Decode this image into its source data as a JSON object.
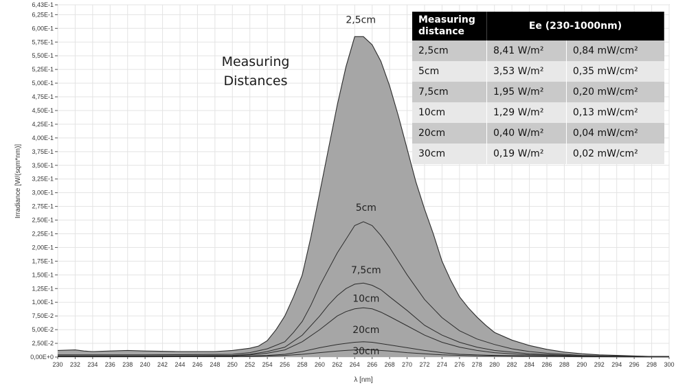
{
  "chart_data": {
    "type": "area",
    "xlabel": "λ [nm]",
    "ylabel": "Irradiance [W/(sqm*nm)]",
    "xlim": [
      230,
      300
    ],
    "ylim": [
      0,
      0.643
    ],
    "x_ticks": [
      "230",
      "232",
      "234",
      "236",
      "238",
      "240",
      "242",
      "244",
      "246",
      "248",
      "250",
      "252",
      "254",
      "256",
      "258",
      "260",
      "262",
      "264",
      "266",
      "268",
      "270",
      "272",
      "274",
      "276",
      "278",
      "280",
      "282",
      "284",
      "286",
      "288",
      "290",
      "292",
      "294",
      "296",
      "298",
      "300"
    ],
    "y_ticks": [
      {
        "value": 0,
        "label": "0,00E+0"
      },
      {
        "value": 0.025,
        "label": "2,50E-2"
      },
      {
        "value": 0.05,
        "label": "5,00E-2"
      },
      {
        "value": 0.075,
        "label": "7,50E-2"
      },
      {
        "value": 0.1,
        "label": "1,00E-1"
      },
      {
        "value": 0.125,
        "label": "1,25E-1"
      },
      {
        "value": 0.15,
        "label": "1,50E-1"
      },
      {
        "value": 0.175,
        "label": "1,75E-1"
      },
      {
        "value": 0.2,
        "label": "2,00E-1"
      },
      {
        "value": 0.225,
        "label": "2,25E-1"
      },
      {
        "value": 0.25,
        "label": "2,50E-1"
      },
      {
        "value": 0.275,
        "label": "2,75E-1"
      },
      {
        "value": 0.3,
        "label": "3,00E-1"
      },
      {
        "value": 0.325,
        "label": "3,25E-1"
      },
      {
        "value": 0.35,
        "label": "3,50E-1"
      },
      {
        "value": 0.375,
        "label": "3,75E-1"
      },
      {
        "value": 0.4,
        "label": "4,00E-1"
      },
      {
        "value": 0.425,
        "label": "4,25E-1"
      },
      {
        "value": 0.45,
        "label": "4,50E-1"
      },
      {
        "value": 0.475,
        "label": "4,75E-1"
      },
      {
        "value": 0.5,
        "label": "5,00E-1"
      },
      {
        "value": 0.525,
        "label": "5,25E-1"
      },
      {
        "value": 0.55,
        "label": "5,50E-1"
      },
      {
        "value": 0.575,
        "label": "5,75E-1"
      },
      {
        "value": 0.6,
        "label": "6,00E-1"
      },
      {
        "value": 0.625,
        "label": "6,25E-1"
      },
      {
        "value": 0.643,
        "label": "6,43E-1"
      }
    ],
    "grid": true,
    "colors": {
      "fill": "#a6a6a6",
      "line": "#2b2b2b",
      "grid": "#e3e3e3"
    },
    "series": [
      {
        "name": "2,5cm",
        "label_x": 264.7,
        "label_y": 0.605,
        "x": [
          230,
          232,
          233,
          234,
          236,
          238,
          240,
          244,
          248,
          250,
          252,
          253,
          254,
          255,
          256,
          257,
          258,
          259,
          260,
          261,
          262,
          263,
          264,
          265,
          266,
          267,
          268,
          269,
          270,
          271,
          272,
          273,
          274,
          275,
          276,
          277,
          278,
          279,
          280,
          282,
          284,
          286,
          288,
          290,
          292,
          294,
          296,
          298,
          300
        ],
        "y": [
          0.012,
          0.013,
          0.011,
          0.01,
          0.011,
          0.012,
          0.011,
          0.01,
          0.01,
          0.012,
          0.016,
          0.02,
          0.03,
          0.05,
          0.075,
          0.11,
          0.15,
          0.22,
          0.3,
          0.38,
          0.46,
          0.53,
          0.585,
          0.585,
          0.57,
          0.54,
          0.495,
          0.44,
          0.38,
          0.32,
          0.27,
          0.225,
          0.175,
          0.14,
          0.11,
          0.09,
          0.073,
          0.058,
          0.045,
          0.031,
          0.021,
          0.014,
          0.009,
          0.006,
          0.004,
          0.003,
          0.002,
          0.001,
          0.001
        ]
      },
      {
        "name": "5cm",
        "label_x": 265.3,
        "label_y": 0.262,
        "x": [
          230,
          240,
          250,
          252,
          254,
          256,
          257,
          258,
          259,
          260,
          261,
          262,
          263,
          264,
          265,
          266,
          267,
          268,
          269,
          270,
          272,
          274,
          276,
          278,
          280,
          282,
          284,
          286,
          290,
          295,
          300
        ],
        "y": [
          0.004,
          0.004,
          0.005,
          0.008,
          0.015,
          0.028,
          0.045,
          0.065,
          0.095,
          0.13,
          0.16,
          0.19,
          0.215,
          0.24,
          0.247,
          0.24,
          0.222,
          0.2,
          0.175,
          0.15,
          0.105,
          0.072,
          0.048,
          0.033,
          0.023,
          0.015,
          0.01,
          0.007,
          0.003,
          0.001,
          0.001
        ]
      },
      {
        "name": "7,5cm",
        "label_x": 265.3,
        "label_y": 0.148,
        "x": [
          230,
          240,
          250,
          252,
          254,
          256,
          258,
          260,
          261,
          262,
          263,
          264,
          265,
          266,
          267,
          268,
          270,
          272,
          274,
          276,
          278,
          280,
          284,
          290,
          300
        ],
        "y": [
          0.002,
          0.002,
          0.003,
          0.005,
          0.01,
          0.018,
          0.04,
          0.075,
          0.095,
          0.112,
          0.125,
          0.133,
          0.135,
          0.131,
          0.123,
          0.11,
          0.085,
          0.058,
          0.04,
          0.027,
          0.018,
          0.012,
          0.006,
          0.002,
          0.001
        ]
      },
      {
        "name": "10cm",
        "label_x": 265.3,
        "label_y": 0.096,
        "x": [
          230,
          240,
          250,
          252,
          254,
          256,
          258,
          260,
          262,
          263,
          264,
          265,
          266,
          267,
          268,
          270,
          272,
          274,
          276,
          278,
          280,
          284,
          290,
          300
        ],
        "y": [
          0.002,
          0.002,
          0.002,
          0.004,
          0.007,
          0.013,
          0.028,
          0.05,
          0.075,
          0.083,
          0.088,
          0.09,
          0.088,
          0.082,
          0.074,
          0.057,
          0.04,
          0.027,
          0.018,
          0.012,
          0.008,
          0.004,
          0.002,
          0.001
        ]
      },
      {
        "name": "20cm",
        "label_x": 265.3,
        "label_y": 0.039,
        "x": [
          230,
          240,
          250,
          252,
          254,
          256,
          258,
          260,
          262,
          264,
          265,
          266,
          268,
          270,
          272,
          274,
          276,
          280,
          290,
          300
        ],
        "y": [
          0.001,
          0.001,
          0.001,
          0.002,
          0.003,
          0.005,
          0.01,
          0.017,
          0.023,
          0.027,
          0.028,
          0.027,
          0.022,
          0.017,
          0.012,
          0.008,
          0.005,
          0.003,
          0.001,
          0.0
        ]
      },
      {
        "name": "30cm",
        "label_x": 265.3,
        "label_y": 0.0,
        "x": [
          230,
          240,
          250,
          254,
          256,
          258,
          260,
          262,
          264,
          265,
          266,
          268,
          270,
          272,
          274,
          278,
          290,
          300
        ],
        "y": [
          0.0005,
          0.0005,
          0.0008,
          0.0015,
          0.003,
          0.005,
          0.008,
          0.011,
          0.013,
          0.0135,
          0.013,
          0.011,
          0.008,
          0.006,
          0.004,
          0.002,
          0.0005,
          0.0
        ]
      }
    ],
    "annotation": [
      "Measuring",
      "Distances"
    ]
  },
  "table": {
    "header_col1": "Measuring distance",
    "header_col2": "Ee  (230-1000nm)",
    "rows": [
      {
        "distance": "2,5cm",
        "wm2": "8,41 W/m²",
        "mwcm2": "0,84 mW/cm²"
      },
      {
        "distance": "5cm",
        "wm2": "3,53 W/m²",
        "mwcm2": "0,35 mW/cm²"
      },
      {
        "distance": "7,5cm",
        "wm2": "1,95 W/m²",
        "mwcm2": "0,20 mW/cm²"
      },
      {
        "distance": "10cm",
        "wm2": "1,29 W/m²",
        "mwcm2": "0,13 mW/cm²"
      },
      {
        "distance": "20cm",
        "wm2": "0,40 W/m²",
        "mwcm2": "0,04 mW/cm²"
      },
      {
        "distance": "30cm",
        "wm2": "0,19 W/m²",
        "mwcm2": "0,02 mW/cm²"
      }
    ]
  }
}
